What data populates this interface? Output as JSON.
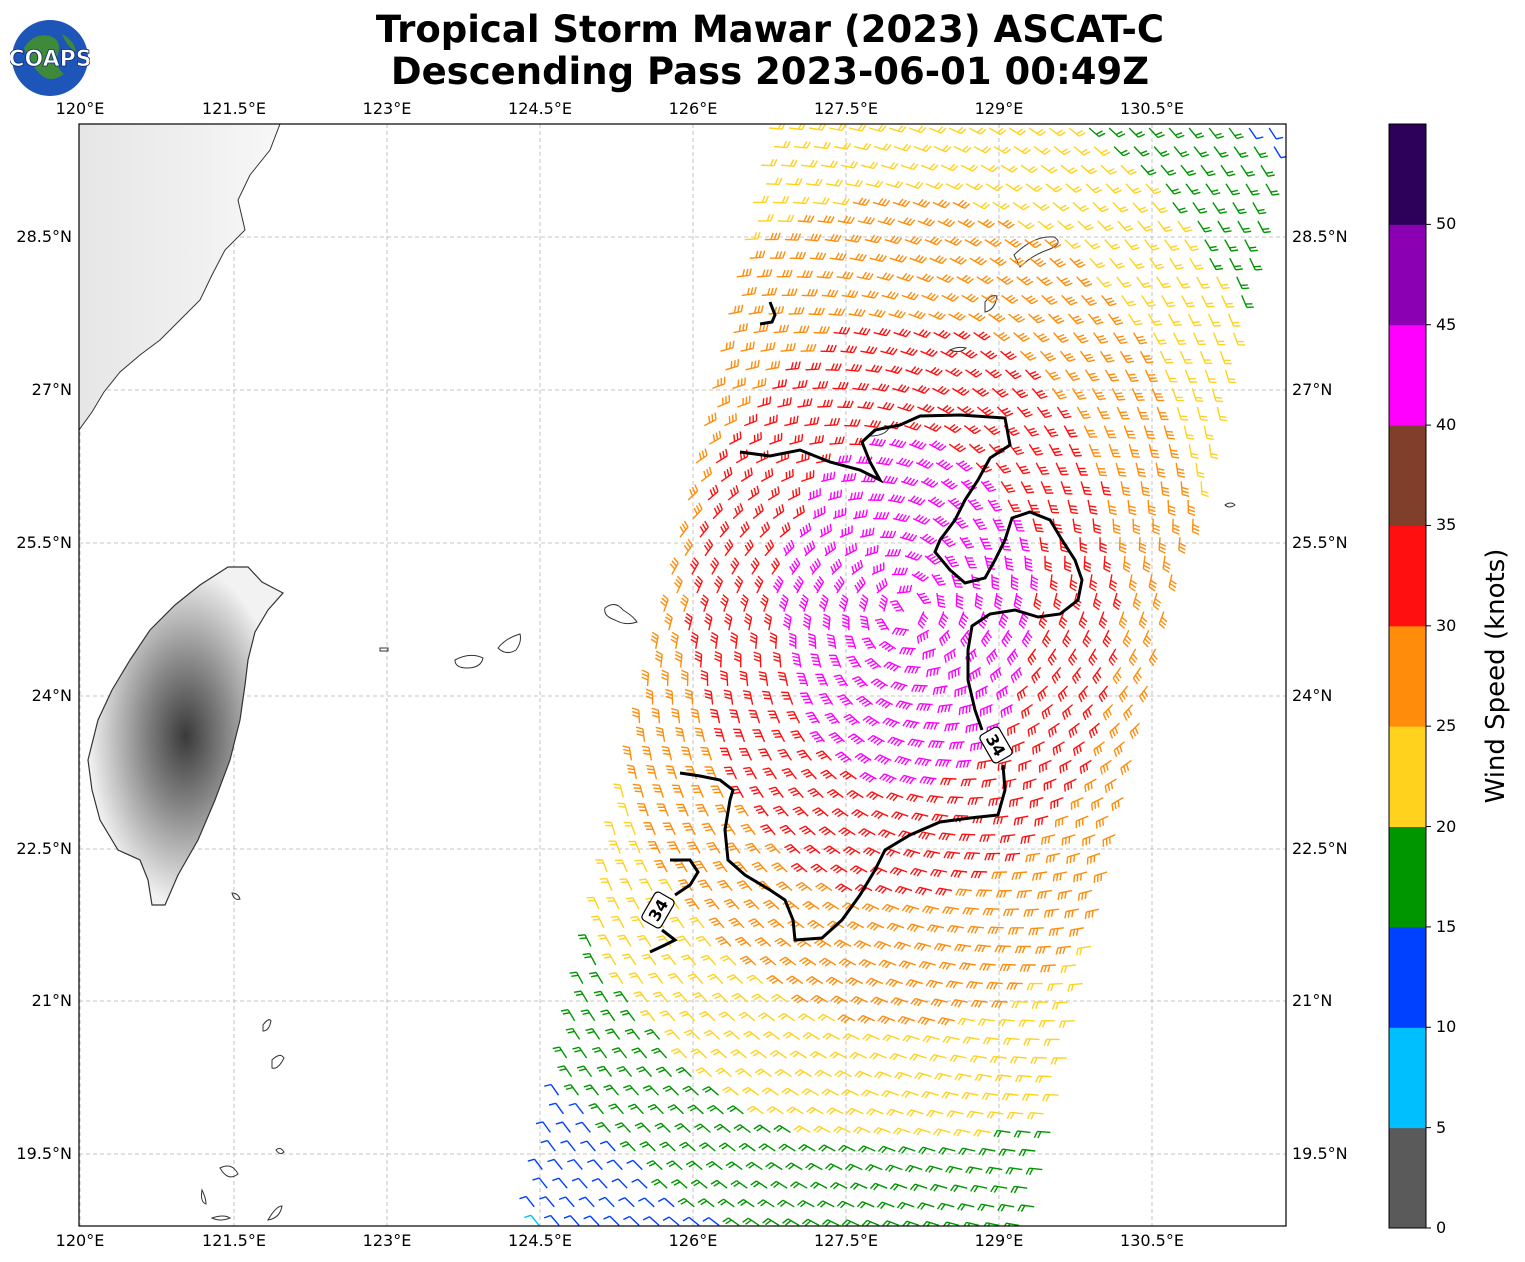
{
  "title_line1": "Tropical Storm Mawar (2023) ASCAT-C",
  "title_line2": "Descending Pass 2023-06-01 00:49Z",
  "logo_text": "COAPS",
  "map": {
    "lon_ticks": [
      "120°E",
      "121.5°E",
      "123°E",
      "124.5°E",
      "126°E",
      "127.5°E",
      "129°E",
      "130.5°E"
    ],
    "lat_ticks": [
      "28.5°N",
      "27°N",
      "25.5°N",
      "24°N",
      "22.5°N",
      "21°N",
      "19.5°N"
    ],
    "contour_label": "34"
  },
  "colorbar": {
    "title": "Wind Speed (knots)",
    "ticks": [
      "0",
      "5",
      "10",
      "15",
      "20",
      "25",
      "30",
      "35",
      "40",
      "45",
      "50"
    ],
    "colors": [
      "#5a5a5a",
      "#00bfff",
      "#0040ff",
      "#009600",
      "#ffd21e",
      "#ff8c0a",
      "#ff0f0f",
      "#7f3f2a",
      "#ff00ff",
      "#8c00b4",
      "#2d005a"
    ]
  },
  "colors": {
    "contour": "#000000",
    "coast": "#333333",
    "grid": "#b4b4b4"
  }
}
